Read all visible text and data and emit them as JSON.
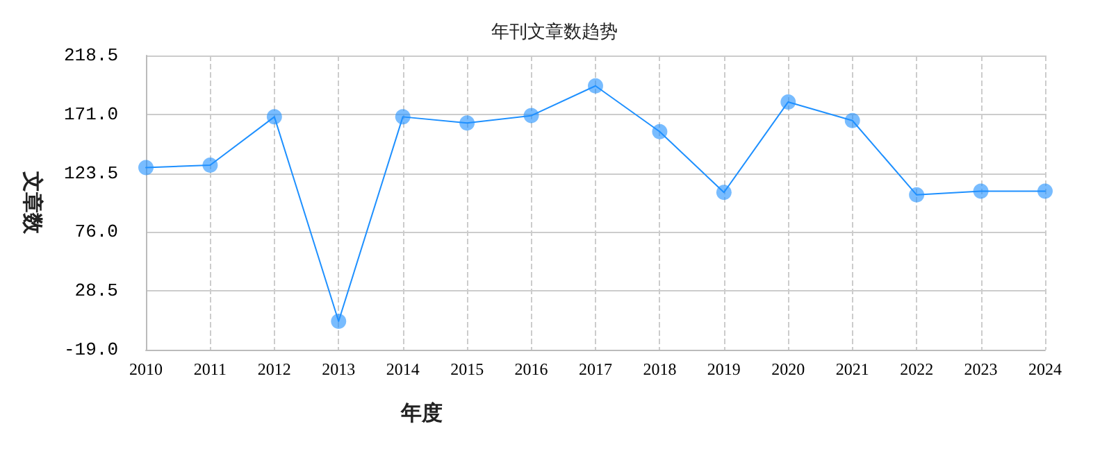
{
  "chart_data": {
    "type": "line",
    "title": "年刊文章数趋势",
    "xlabel": "年度",
    "ylabel": "文章数",
    "categories": [
      "2010",
      "2011",
      "2012",
      "2013",
      "2014",
      "2015",
      "2016",
      "2017",
      "2018",
      "2019",
      "2020",
      "2021",
      "2022",
      "2023",
      "2024"
    ],
    "series": [
      {
        "color": "#1e90ff",
        "values": [
          128,
          130,
          169,
          4,
          169,
          164,
          170,
          194,
          157,
          108,
          181,
          166,
          106,
          109,
          109
        ]
      }
    ],
    "ylim": [
      -19,
      218.5
    ],
    "yticks": [
      {
        "value": -19,
        "label": "-19.0"
      },
      28.5,
      {
        "value": 76,
        "label": "76.0"
      },
      123.5,
      {
        "value": 171,
        "label": "171.0"
      },
      218.5
    ],
    "grid": true,
    "marker": "circle",
    "line_style": "solid"
  }
}
